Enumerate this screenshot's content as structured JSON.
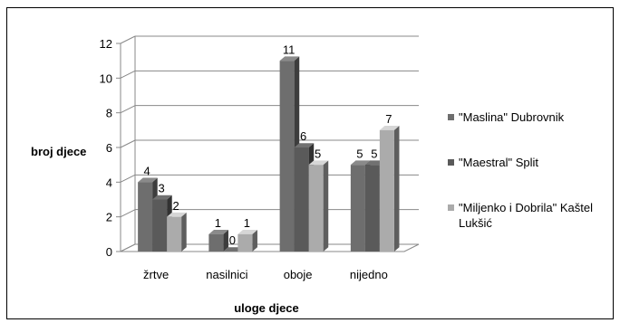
{
  "chart_data": {
    "type": "bar",
    "title": "",
    "xlabel": "uloge djece",
    "ylabel": "broj djece",
    "ylim": [
      0,
      12
    ],
    "yticks": [
      0,
      2,
      4,
      6,
      8,
      10,
      12
    ],
    "grid": true,
    "legend_position": "right",
    "categories": [
      "žrtve",
      "nasilnici",
      "oboje",
      "nijedno"
    ],
    "series": [
      {
        "name": "\"Maslina\" Dubrovnik",
        "values": [
          4,
          1,
          11,
          5
        ],
        "color": "#6e6e6e"
      },
      {
        "name": "\"Maestral\" Split",
        "values": [
          3,
          0,
          6,
          5
        ],
        "color": "#5a5a5a"
      },
      {
        "name": "\"Miljenko i Dobrila\" Kaštel Lukšić",
        "values": [
          2,
          1,
          5,
          7
        ],
        "color": "#ababab"
      }
    ]
  }
}
